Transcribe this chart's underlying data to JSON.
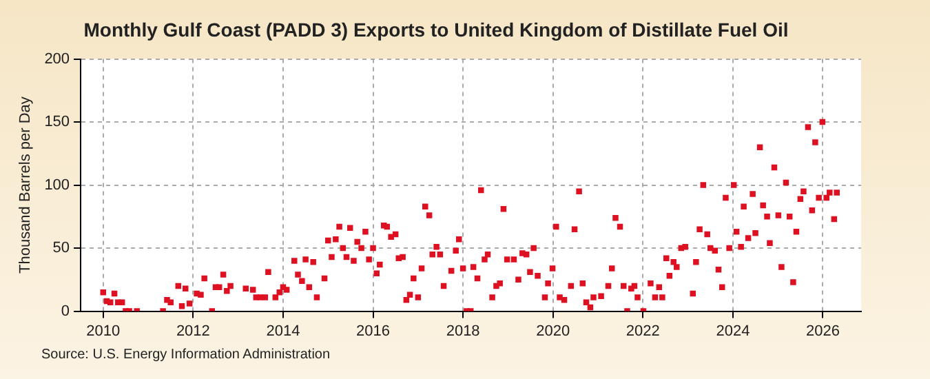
{
  "chart_data": {
    "type": "scatter",
    "title": "Monthly Gulf Coast (PADD 3) Exports to United Kingdom of Distillate Fuel Oil",
    "ylabel": "Thousand Barrels per Day",
    "annotations": [
      "Source: U.S. Energy Information Administration"
    ],
    "xlim": [
      2009.5,
      2026.85
    ],
    "xticks": [
      2010,
      2012,
      2014,
      2016,
      2018,
      2020,
      2022,
      2024,
      2026
    ],
    "ylim": [
      0,
      200
    ],
    "yticks": [
      0,
      50,
      100,
      150,
      200
    ],
    "grid": true,
    "legend": false,
    "marker": "square",
    "series": [
      {
        "color": "#dd1122",
        "x": [
          2010.0,
          2010.08,
          2010.16,
          2010.25,
          2010.33,
          2010.42,
          2010.5,
          2010.58,
          2010.75,
          2011.33,
          2011.42,
          2011.5,
          2011.67,
          2011.75,
          2011.83,
          2011.92,
          2012.08,
          2012.17,
          2012.25,
          2012.42,
          2012.5,
          2012.58,
          2012.67,
          2012.75,
          2012.83,
          2013.17,
          2013.33,
          2013.4,
          2013.5,
          2013.6,
          2013.67,
          2013.83,
          2013.92,
          2014.0,
          2014.08,
          2014.25,
          2014.33,
          2014.42,
          2014.5,
          2014.58,
          2014.67,
          2014.75,
          2014.92,
          2015.0,
          2015.08,
          2015.17,
          2015.25,
          2015.33,
          2015.41,
          2015.49,
          2015.57,
          2015.65,
          2015.74,
          2015.83,
          2015.91,
          2016.0,
          2016.08,
          2016.15,
          2016.24,
          2016.31,
          2016.4,
          2016.5,
          2016.57,
          2016.66,
          2016.74,
          2016.82,
          2016.9,
          2017.0,
          2017.08,
          2017.16,
          2017.25,
          2017.32,
          2017.41,
          2017.49,
          2017.57,
          2017.74,
          2017.84,
          2017.91,
          2018.0,
          2018.08,
          2018.17,
          2018.23,
          2018.32,
          2018.4,
          2018.48,
          2018.55,
          2018.65,
          2018.74,
          2018.82,
          2018.9,
          2018.98,
          2019.13,
          2019.23,
          2019.32,
          2019.41,
          2019.49,
          2019.57,
          2019.66,
          2019.82,
          2019.89,
          2019.99,
          2020.07,
          2020.15,
          2020.25,
          2020.4,
          2020.48,
          2020.58,
          2020.66,
          2020.74,
          2020.83,
          2020.9,
          2021.07,
          2021.23,
          2021.31,
          2021.39,
          2021.49,
          2021.57,
          2021.65,
          2021.74,
          2021.81,
          2021.88,
          2022.01,
          2022.17,
          2022.27,
          2022.36,
          2022.43,
          2022.52,
          2022.59,
          2022.68,
          2022.75,
          2022.85,
          2022.94,
          2023.11,
          2023.18,
          2023.26,
          2023.34,
          2023.43,
          2023.5,
          2023.6,
          2023.68,
          2023.76,
          2023.84,
          2023.92,
          2024.02,
          2024.08,
          2024.18,
          2024.24,
          2024.34,
          2024.44,
          2024.5,
          2024.6,
          2024.67,
          2024.76,
          2024.82,
          2024.92,
          2025.01,
          2025.08,
          2025.18,
          2025.26,
          2025.34,
          2025.41,
          2025.5,
          2025.57,
          2025.67,
          2025.76,
          2025.83,
          2025.91,
          2025.99,
          2026.08,
          2026.15,
          2026.25,
          2026.31
        ],
        "values": [
          15,
          8,
          7,
          14,
          7,
          7,
          0,
          0,
          0,
          0,
          9,
          7,
          20,
          4,
          18,
          6,
          14,
          13,
          26,
          0,
          19,
          19,
          29,
          16,
          20,
          18,
          17,
          11,
          11,
          11,
          31,
          11,
          15,
          19,
          17,
          40,
          29,
          24,
          41,
          19,
          39,
          11,
          26,
          56,
          43,
          57,
          67,
          50,
          43,
          66,
          40,
          55,
          50,
          63,
          41,
          50,
          30,
          37,
          68,
          67,
          59,
          61,
          42,
          43,
          9,
          13,
          26,
          11,
          34,
          83,
          76,
          45,
          51,
          45,
          20,
          32,
          48,
          57,
          34,
          0,
          0,
          35,
          26,
          96,
          41,
          45,
          11,
          20,
          22,
          81,
          41,
          41,
          25,
          46,
          45,
          31,
          50,
          28,
          11,
          22,
          34,
          67,
          11,
          9,
          20,
          65,
          95,
          22,
          7,
          3,
          11,
          12,
          20,
          34,
          74,
          67,
          20,
          0,
          18,
          20,
          11,
          0,
          22,
          11,
          19,
          11,
          42,
          28,
          39,
          35,
          50,
          51,
          14,
          39,
          65,
          100,
          61,
          50,
          48,
          33,
          19,
          90,
          50,
          100,
          63,
          51,
          83,
          58,
          93,
          62,
          130,
          84,
          75,
          54,
          114,
          76,
          35,
          102,
          75,
          23,
          63,
          89,
          95,
          146,
          80,
          134,
          90,
          150,
          90,
          94,
          73,
          94
        ]
      }
    ]
  }
}
